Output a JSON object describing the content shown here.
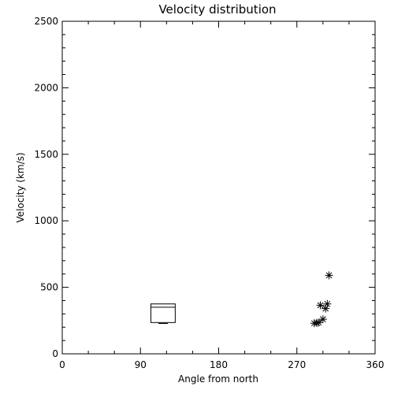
{
  "chart_data": {
    "type": "scatter",
    "title": "Velocity distribution",
    "xlabel": "Angle from north",
    "ylabel": "Velocity (km/s)",
    "xlim": [
      0,
      360
    ],
    "ylim": [
      0,
      2500
    ],
    "xticks": [
      0,
      90,
      180,
      270,
      360
    ],
    "yticks": [
      0,
      500,
      1000,
      1500,
      2000,
      2500
    ],
    "grid": false,
    "box": {
      "x_range": [
        102,
        130
      ],
      "q1": 235,
      "median": 350,
      "q3": 375,
      "whisker_low": 228
    },
    "points": [
      {
        "x": 290,
        "y": 230
      },
      {
        "x": 293,
        "y": 232
      },
      {
        "x": 295,
        "y": 235
      },
      {
        "x": 300,
        "y": 260
      },
      {
        "x": 297,
        "y": 365
      },
      {
        "x": 303,
        "y": 340
      },
      {
        "x": 305,
        "y": 375
      },
      {
        "x": 307,
        "y": 590
      }
    ],
    "marker": "asterisk",
    "color": "#000000"
  }
}
